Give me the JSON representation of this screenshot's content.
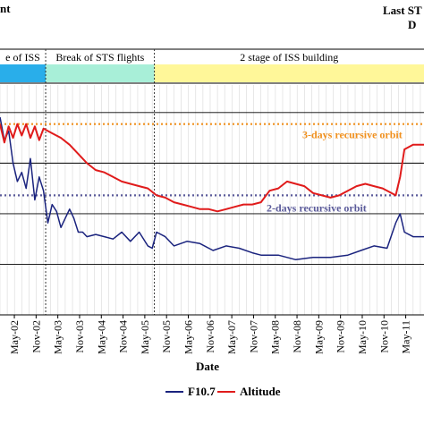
{
  "header": {
    "top_left_fragment": "nt",
    "top_right_fragment": "Last ST",
    "top_right_fragment_2": "D"
  },
  "chart_data": {
    "type": "line",
    "xlabel": "Date",
    "x_ticks": [
      "May-02",
      "Nov-02",
      "May-03",
      "Nov-03",
      "May-04",
      "Nov-04",
      "May-05",
      "Nov-05",
      "May-06",
      "Nov-06",
      "May-07",
      "Nov-07",
      "May-08",
      "Nov-08",
      "May-09",
      "Nov-09",
      "May-10",
      "Nov-10",
      "May-11"
    ],
    "x_range": [
      2002.0,
      2011.75
    ],
    "y_range": [
      0,
      100
    ],
    "grid": "horizontal-and-vertical",
    "phases": [
      {
        "label": "e of ISS",
        "start": 2002.0,
        "end": 2003.05,
        "color": "#29aeea"
      },
      {
        "label": "Break of STS flights",
        "start": 2003.05,
        "end": 2005.55,
        "color": "#a8efd8"
      },
      {
        "label": "2 stage of ISS building",
        "start": 2005.55,
        "end": 2011.75,
        "color": "#fff799"
      }
    ],
    "reference_lines": [
      {
        "label": "3-days recursive orbit",
        "y": 83,
        "color": "#f0901e"
      },
      {
        "label": "2-days recursive orbit",
        "y": 52,
        "color": "#5b5b9a"
      }
    ],
    "series": [
      {
        "name": "F10.7",
        "color": "#1a237e",
        "x": [
          2002.0,
          2002.1,
          2002.2,
          2002.3,
          2002.4,
          2002.5,
          2002.6,
          2002.7,
          2002.8,
          2002.9,
          2003.0,
          2003.1,
          2003.2,
          2003.3,
          2003.4,
          2003.5,
          2003.6,
          2003.7,
          2003.8,
          2003.9,
          2004.0,
          2004.2,
          2004.4,
          2004.6,
          2004.8,
          2005.0,
          2005.2,
          2005.4,
          2005.5,
          2005.6,
          2005.8,
          2006.0,
          2006.3,
          2006.6,
          2006.9,
          2007.2,
          2007.5,
          2007.8,
          2008.0,
          2008.4,
          2008.8,
          2009.2,
          2009.6,
          2010.0,
          2010.3,
          2010.6,
          2010.9,
          2011.1,
          2011.2,
          2011.3,
          2011.5,
          2011.75
        ],
        "y": [
          86,
          76,
          80,
          66,
          58,
          62,
          55,
          68,
          50,
          60,
          54,
          40,
          48,
          45,
          38,
          42,
          46,
          42,
          36,
          36,
          34,
          35,
          34,
          33,
          36,
          32,
          36,
          30,
          29,
          36,
          34,
          30,
          32,
          31,
          28,
          30,
          29,
          27,
          26,
          26,
          24,
          25,
          25,
          26,
          28,
          30,
          29,
          40,
          44,
          36,
          34,
          34
        ]
      },
      {
        "name": "Altitude",
        "color": "#e01b1b",
        "x": [
          2002.0,
          2002.1,
          2002.2,
          2002.3,
          2002.4,
          2002.5,
          2002.6,
          2002.7,
          2002.8,
          2002.9,
          2003.0,
          2003.2,
          2003.4,
          2003.6,
          2003.8,
          2004.0,
          2004.2,
          2004.4,
          2004.6,
          2004.8,
          2005.0,
          2005.2,
          2005.4,
          2005.6,
          2005.8,
          2006.0,
          2006.2,
          2006.4,
          2006.6,
          2006.8,
          2007.0,
          2007.2,
          2007.4,
          2007.6,
          2007.8,
          2008.0,
          2008.2,
          2008.4,
          2008.6,
          2008.8,
          2009.0,
          2009.2,
          2009.4,
          2009.6,
          2009.8,
          2010.0,
          2010.2,
          2010.4,
          2010.6,
          2010.8,
          2011.0,
          2011.1,
          2011.2,
          2011.3,
          2011.5,
          2011.75
        ],
        "y": [
          83,
          75,
          82,
          77,
          83,
          78,
          83,
          77,
          82,
          76,
          81,
          79,
          77,
          74,
          70,
          66,
          63,
          62,
          60,
          58,
          57,
          56,
          55,
          52,
          51,
          49,
          48,
          47,
          46,
          46,
          45,
          46,
          47,
          48,
          48,
          49,
          54,
          55,
          58,
          57,
          56,
          53,
          52,
          51,
          52,
          54,
          56,
          57,
          56,
          55,
          53,
          52,
          60,
          72,
          74,
          74
        ]
      }
    ]
  },
  "legend": {
    "items": [
      {
        "label": "F10.7",
        "color": "#1a237e"
      },
      {
        "label": "Altitude",
        "color": "#e01b1b"
      }
    ]
  }
}
